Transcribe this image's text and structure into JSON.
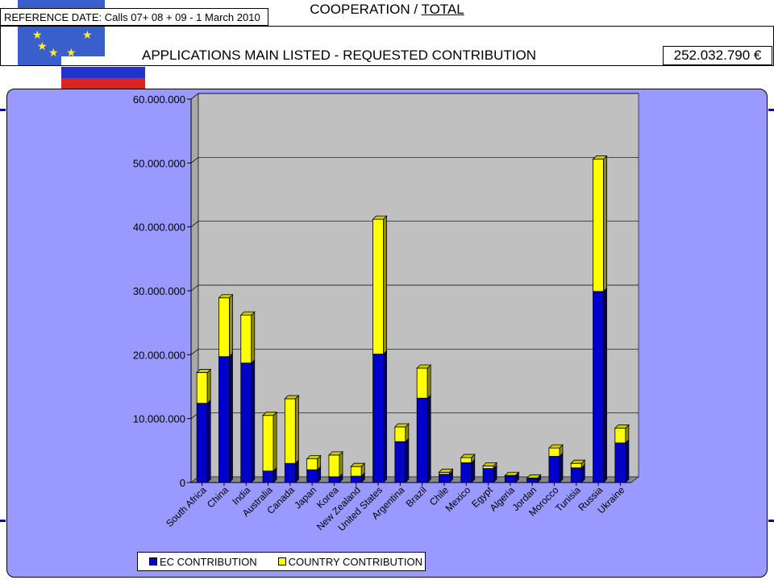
{
  "header": {
    "reference_date": "REFERENCE DATE:  Calls 07+ 08 + 09 - 1  March 2010",
    "title_part1": "COOPERATION  / ",
    "title_part2": "TOTAL",
    "subtitle": "APPLICATIONS MAIN LISTED - REQUESTED CONTRIBUTION",
    "total": "252.032.790 €"
  },
  "colors": {
    "panel": "#9999ff",
    "plot_bg": "#c0c0c0",
    "ec": "#0000cc",
    "country": "#ffff00"
  },
  "chart_data": {
    "type": "bar",
    "stacked": true,
    "three_d": true,
    "title": "",
    "xlabel": "",
    "ylabel": "",
    "ylim": [
      0,
      60000000
    ],
    "yticks": [
      0,
      10000000,
      20000000,
      30000000,
      40000000,
      50000000,
      60000000
    ],
    "ytick_labels": [
      "0",
      "10.000.000",
      "20.000.000",
      "30.000.000",
      "40.000.000",
      "50.000.000",
      "60.000.000"
    ],
    "grid": true,
    "legend_position": "bottom-left",
    "categories": [
      "South Africa",
      "China",
      "India",
      "Australia",
      "Canada",
      "Japan",
      "Korea",
      "New Zealand",
      "United States",
      "Argentina",
      "Brazil",
      "Chile",
      "Mexico",
      "Egypt",
      "Algeria",
      "Jordan",
      "Morocco",
      "Tunisia",
      "Russia",
      "Ukraine"
    ],
    "series": [
      {
        "name": "EC CONTRIBUTION",
        "color": "#0000cc",
        "values": [
          12400000,
          19700000,
          18700000,
          1800000,
          3000000,
          2000000,
          900000,
          1000000,
          20100000,
          6400000,
          13200000,
          1300000,
          3100000,
          2200000,
          1000000,
          600000,
          4100000,
          2300000,
          29900000,
          6200000
        ]
      },
      {
        "name": "COUNTRY CONTRIBUTION",
        "color": "#ffff00",
        "values": [
          4800000,
          9200000,
          7500000,
          8700000,
          10100000,
          1700000,
          3400000,
          1500000,
          21100000,
          2300000,
          4700000,
          300000,
          800000,
          400000,
          100000,
          100000,
          1300000,
          700000,
          20700000,
          2300000
        ]
      }
    ]
  }
}
